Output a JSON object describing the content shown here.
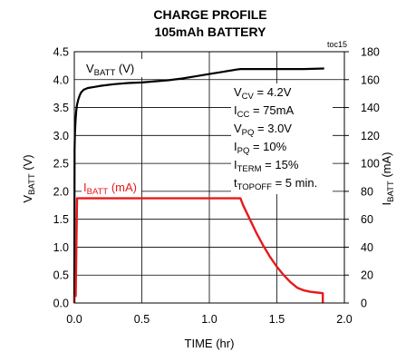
{
  "chart_data": {
    "type": "line",
    "title": "CHARGE PROFILE",
    "subtitle": "105mAh BATTERY",
    "tag": "toc15",
    "xlabel": "TIME (hr)",
    "xlim": [
      0,
      2.0
    ],
    "xticks": [
      0.0,
      0.5,
      1.0,
      1.5,
      2.0
    ],
    "xtick_labels": [
      "0.0",
      "0.5",
      "1.0",
      "1.5",
      "2.0"
    ],
    "ylabel_left": {
      "main": "V",
      "sub": "BATT",
      "unit": " (V)"
    },
    "ylim_left": [
      0,
      4.5
    ],
    "yticks_left_labels": [
      "0.0",
      "0.5",
      "1.0",
      "1.5",
      "2.0",
      "2.5",
      "3.0",
      "3.5",
      "4.0",
      "4.5"
    ],
    "ylabel_right": {
      "main": "I",
      "sub": "BATT",
      "unit": " (mA)"
    },
    "ylim_right": [
      0,
      180
    ],
    "yticks_right_labels": [
      "0",
      "20",
      "40",
      "60",
      "80",
      "100",
      "120",
      "140",
      "160",
      "180"
    ],
    "grid": true,
    "series": [
      {
        "name": "VBATT (V)",
        "label": {
          "main": "V",
          "sub": "BATT",
          "unit": " (V)"
        },
        "axis": "left",
        "color": "#000000",
        "x": [
          0.0,
          0.002,
          0.005,
          0.01,
          0.015,
          0.02,
          0.03,
          0.04,
          0.05,
          0.07,
          0.1,
          0.15,
          0.2,
          0.3,
          0.4,
          0.5,
          0.6,
          0.7,
          0.8,
          0.9,
          1.0,
          1.1,
          1.2,
          1.23,
          1.5,
          1.7,
          1.85
        ],
        "y": [
          0.0,
          2.75,
          3.05,
          3.3,
          3.45,
          3.55,
          3.65,
          3.72,
          3.77,
          3.82,
          3.85,
          3.87,
          3.89,
          3.92,
          3.94,
          3.95,
          3.97,
          3.99,
          4.02,
          4.06,
          4.1,
          4.14,
          4.18,
          4.19,
          4.19,
          4.19,
          4.2
        ]
      },
      {
        "name": "IBATT (mA)",
        "label": {
          "main": "I",
          "sub": "BATT",
          "unit": " (mA)"
        },
        "axis": "right",
        "color": "#e8191a",
        "x": [
          0.0,
          0.0,
          0.01,
          0.02,
          1.23,
          1.25,
          1.3,
          1.35,
          1.4,
          1.45,
          1.5,
          1.55,
          1.6,
          1.65,
          1.7,
          1.75,
          1.8,
          1.84,
          1.84
        ],
        "y": [
          0.0,
          5.0,
          5.0,
          75.0,
          75.0,
          70.0,
          60.0,
          50.0,
          41.0,
          33.0,
          26.0,
          20.0,
          15.0,
          11.0,
          9.0,
          8.0,
          7.5,
          7.0,
          0.0
        ]
      }
    ],
    "annotations": [
      {
        "main": "V",
        "sub": "CV",
        "rest": " = 4.2V"
      },
      {
        "main": "I",
        "sub": "CC",
        "rest": " = 75mA"
      },
      {
        "main": "V",
        "sub": "PQ",
        "rest": " = 3.0V"
      },
      {
        "main": "I",
        "sub": "PQ",
        "rest": " = 10%"
      },
      {
        "main": "I",
        "sub": "TERM",
        "rest": " = 15%"
      },
      {
        "main": "t",
        "sub": "TOPOFF",
        "rest": " = 5 min."
      }
    ]
  }
}
